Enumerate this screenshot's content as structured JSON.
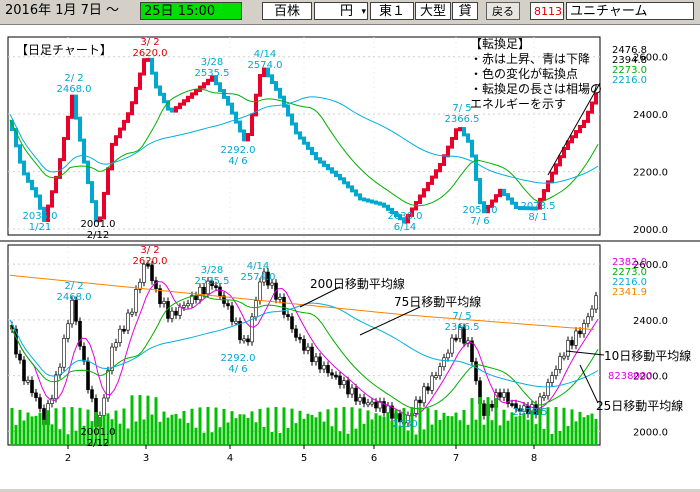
{
  "toolbar": {
    "start_date": "2016年 1月 7日 ～",
    "datetime": "25日 15:00",
    "share_unit": "百株",
    "currency": "円",
    "market": "東１",
    "size": "大型",
    "lending": "貸",
    "back_button": "戻る",
    "code": "8113",
    "company": "ユニチャーム"
  },
  "colors": {
    "up": "#e8002a",
    "down": "#00a8d0",
    "ma10": "#e000e0",
    "ma25": "#00b000",
    "ma75": "#00b0e0",
    "ma200": "#ff8000",
    "volume": "#00c000",
    "price_label_red": "#e00000"
  },
  "upper": {
    "title": "【日足チャート】",
    "note_title": "【転換足】",
    "notes": [
      "・赤は上昇、青は下降",
      "・色の変化が転換点",
      "・転換足の長さは相場の",
      "エネルギーを示す"
    ],
    "right_labels": [
      {
        "text": "2476.8",
        "color": "#000"
      },
      {
        "text": "2394.8",
        "color": "#000"
      },
      {
        "text": "2273.0",
        "color": "#00b000"
      },
      {
        "text": "2216.0",
        "color": "#00a8d0"
      }
    ],
    "axis": [
      "2600.0",
      "2400.0",
      "2200.0",
      "2000.0"
    ],
    "annotations": [
      {
        "text": "3/ 2",
        "color": "#e00000"
      },
      {
        "text": "2620.0",
        "color": "#e00000"
      },
      {
        "text": "2/ 2",
        "color": "#00a8d0"
      },
      {
        "text": "2468.0",
        "color": "#00a8d0"
      },
      {
        "text": "3/28",
        "color": "#00a8d0"
      },
      {
        "text": "2535.5",
        "color": "#00a8d0"
      },
      {
        "text": "4/14",
        "color": "#00a8d0"
      },
      {
        "text": "2574.0",
        "color": "#00a8d0"
      },
      {
        "text": "7/ 5",
        "color": "#00a8d0"
      },
      {
        "text": "2366.5",
        "color": "#00a8d0"
      },
      {
        "text": "2292.0",
        "color": "#00a8d0"
      },
      {
        "text": "4/ 6",
        "color": "#00a8d0"
      },
      {
        "text": "2035.0",
        "color": "#00a8d0"
      },
      {
        "text": "1/21",
        "color": "#00a8d0"
      },
      {
        "text": "2001.0",
        "color": "#000"
      },
      {
        "text": "2/12",
        "color": "#000"
      },
      {
        "text": "2030.0",
        "color": "#00a8d0"
      },
      {
        "text": "6/14",
        "color": "#00a8d0"
      },
      {
        "text": "2056.0",
        "color": "#00a8d0"
      },
      {
        "text": "7/ 6",
        "color": "#00a8d0"
      },
      {
        "text": "2078.5",
        "color": "#00a8d0"
      },
      {
        "text": "8/ 1",
        "color": "#00a8d0"
      }
    ]
  },
  "lower": {
    "right_labels": [
      {
        "text": "2382.0",
        "color": "#e000e0"
      },
      {
        "text": "2273.0",
        "color": "#00b000"
      },
      {
        "text": "2216.0",
        "color": "#00b0e0"
      },
      {
        "text": "2341.9",
        "color": "#ff8000"
      }
    ],
    "axis": [
      "2600.0",
      "2400.0",
      "2200.0",
      "2000.0"
    ],
    "volume_label": "8238000",
    "ma_labels": {
      "ma200": "200日移動平均線",
      "ma75": "75日移動平均線",
      "ma10": "10日移動平均線",
      "ma25": "25日移動平均線"
    },
    "annotations": [
      {
        "text": "3/ 2",
        "color": "#e00000"
      },
      {
        "text": "2620.0",
        "color": "#e00000"
      },
      {
        "text": "2/ 2",
        "color": "#00a8d0"
      },
      {
        "text": "2468.0",
        "color": "#00a8d0"
      },
      {
        "text": "3/28",
        "color": "#00a8d0"
      },
      {
        "text": "2535.5",
        "color": "#00a8d0"
      },
      {
        "text": "4/14",
        "color": "#00a8d0"
      },
      {
        "text": "2574.0",
        "color": "#00a8d0"
      },
      {
        "text": "7/ 5",
        "color": "#00a8d0"
      },
      {
        "text": "2366.5",
        "color": "#00a8d0"
      },
      {
        "text": "2292.0",
        "color": "#00a8d0"
      },
      {
        "text": "4/ 6",
        "color": "#00a8d0"
      },
      {
        "text": "2001.0",
        "color": "#000"
      },
      {
        "text": "2/12",
        "color": "#000"
      },
      {
        "text": "2030",
        "color": "#00a8d0"
      },
      {
        "text": "2078.5",
        "color": "#00a8d0"
      }
    ]
  },
  "x_axis": [
    "2",
    "3",
    "4",
    "5",
    "6",
    "7",
    "8"
  ]
}
